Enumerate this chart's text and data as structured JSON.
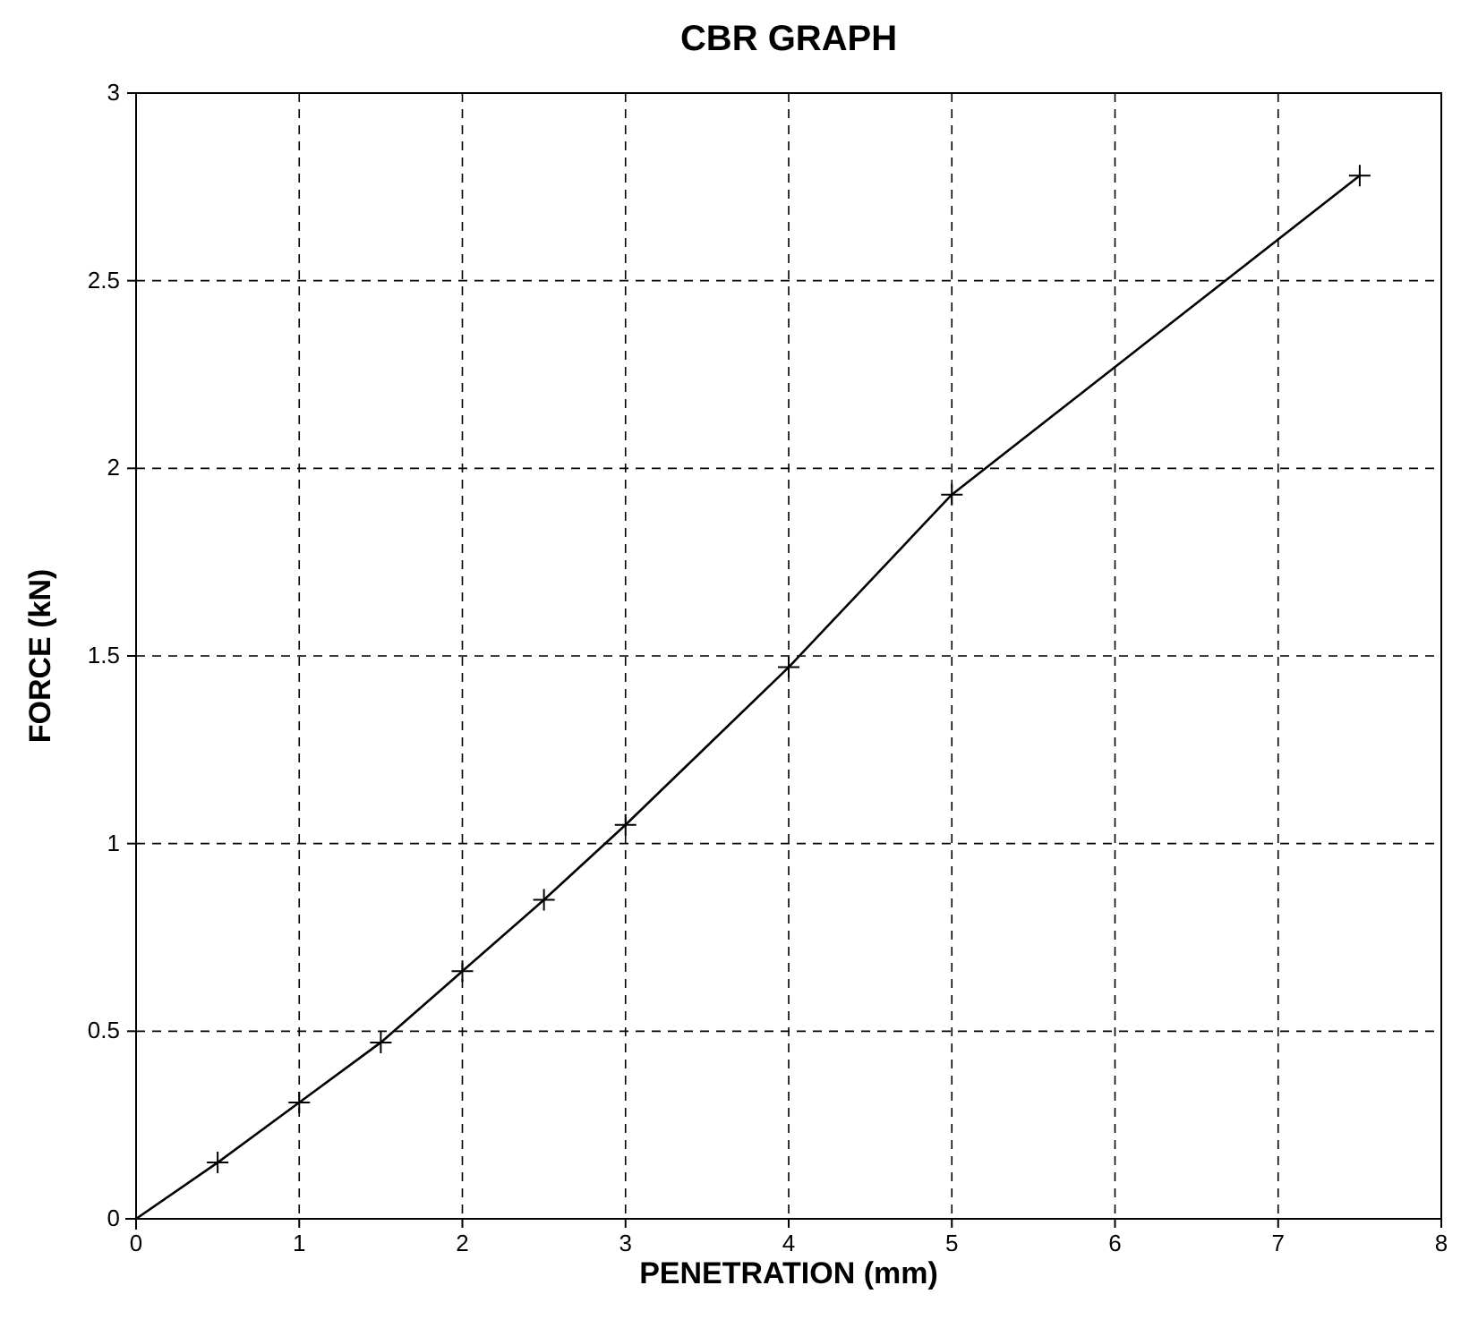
{
  "chart_data": {
    "type": "line",
    "title": "CBR GRAPH",
    "xlabel": "PENETRATION (mm)",
    "ylabel": "FORCE (kN)",
    "x": [
      0,
      0.5,
      1,
      1.5,
      2,
      2.5,
      3,
      4,
      5,
      7.5
    ],
    "series": [
      {
        "color": "#000000",
        "values": [
          0,
          0.15,
          0.31,
          0.47,
          0.66,
          0.85,
          1.05,
          1.47,
          1.93,
          2.78
        ]
      }
    ],
    "xlim": [
      0,
      8
    ],
    "xticks": [
      0,
      1,
      2,
      3,
      4,
      5,
      6,
      7,
      8
    ],
    "ylim": [
      0,
      3
    ],
    "yticks": [
      0,
      0.5,
      1,
      1.5,
      2,
      2.5,
      3
    ],
    "grid": true,
    "marker": "cross",
    "line_style": "solid"
  }
}
